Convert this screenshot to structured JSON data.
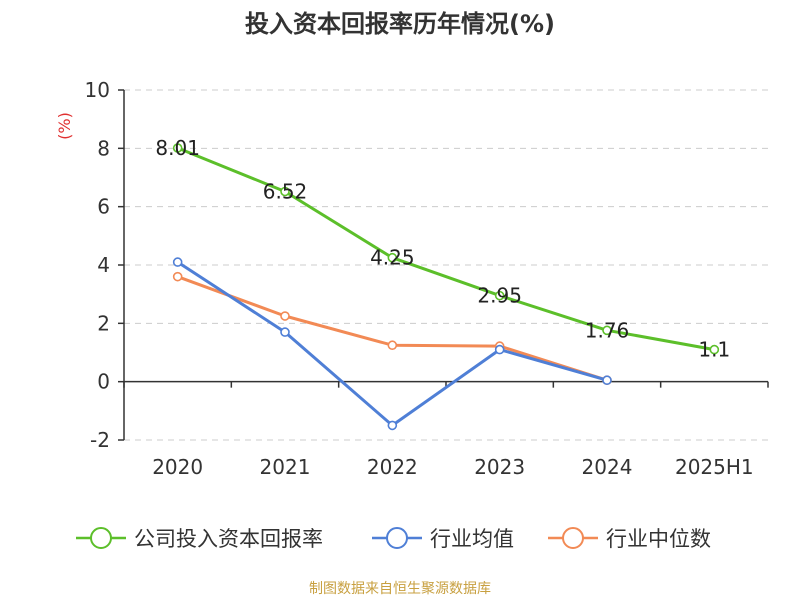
{
  "chart_data": {
    "type": "line",
    "title": "投入资本回报率历年情况(%)",
    "ylabel": "(%)",
    "xlabel": "",
    "categories": [
      "2020",
      "2021",
      "2022",
      "2023",
      "2024",
      "2025H1"
    ],
    "ylim": [
      -2,
      10
    ],
    "yticks": [
      -2,
      0,
      2,
      4,
      6,
      8,
      10
    ],
    "grid": true,
    "legend_position": "bottom",
    "series": [
      {
        "name": "公司投入资本回报率",
        "color": "#5cbf2a",
        "values": [
          8.01,
          6.52,
          4.25,
          2.95,
          1.76,
          1.1
        ],
        "labels": [
          "8.01",
          "6.52",
          "4.25",
          "2.95",
          "1.76",
          "1.1"
        ]
      },
      {
        "name": "行业均值",
        "color": "#4f7fd6",
        "values": [
          4.1,
          1.7,
          -1.5,
          1.1,
          0.05,
          null
        ]
      },
      {
        "name": "行业中位数",
        "color": "#f28a55",
        "values": [
          3.6,
          2.25,
          1.25,
          1.22,
          0.05,
          null
        ]
      }
    ]
  },
  "source": "制图数据来自恒生聚源数据库"
}
